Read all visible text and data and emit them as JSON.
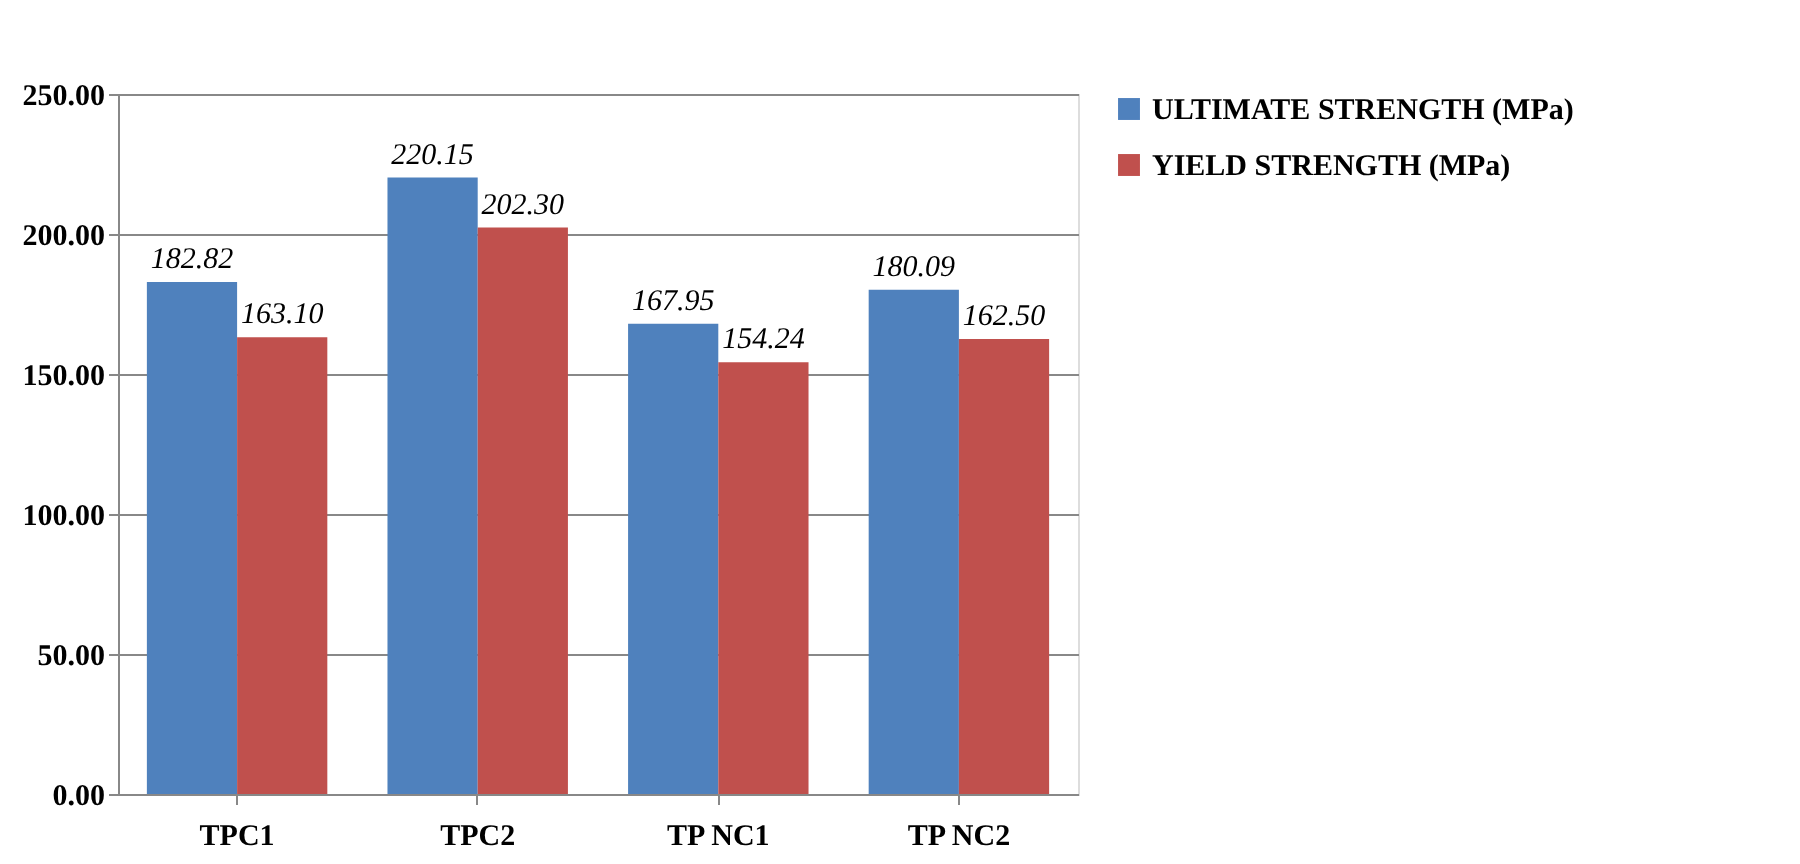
{
  "chart_data": {
    "type": "bar",
    "categories": [
      "TPC1",
      "TPC2",
      "TP NC1",
      "TP NC2"
    ],
    "series": [
      {
        "name": "ULTIMATE STRENGTH (MPa)",
        "color": "#4f81bd",
        "values": [
          182.82,
          220.15,
          167.95,
          180.09
        ],
        "value_labels": [
          "182.82",
          "220.15",
          "167.95",
          "180.09"
        ]
      },
      {
        "name": "YIELD STRENGTH (MPa)",
        "color": "#c0504d",
        "values": [
          163.1,
          202.3,
          154.24,
          162.5
        ],
        "value_labels": [
          "163.10",
          "202.30",
          "154.24",
          "162.50"
        ]
      }
    ],
    "ylim": [
      0,
      250
    ],
    "yticks": [
      {
        "value": 0,
        "label": "0.00"
      },
      {
        "value": 50,
        "label": "50.00"
      },
      {
        "value": 100,
        "label": "100.00"
      },
      {
        "value": 150,
        "label": "150.00"
      },
      {
        "value": 200,
        "label": "200.00"
      },
      {
        "value": 250,
        "label": "250.00"
      }
    ],
    "grid": "y",
    "legend": "right"
  }
}
